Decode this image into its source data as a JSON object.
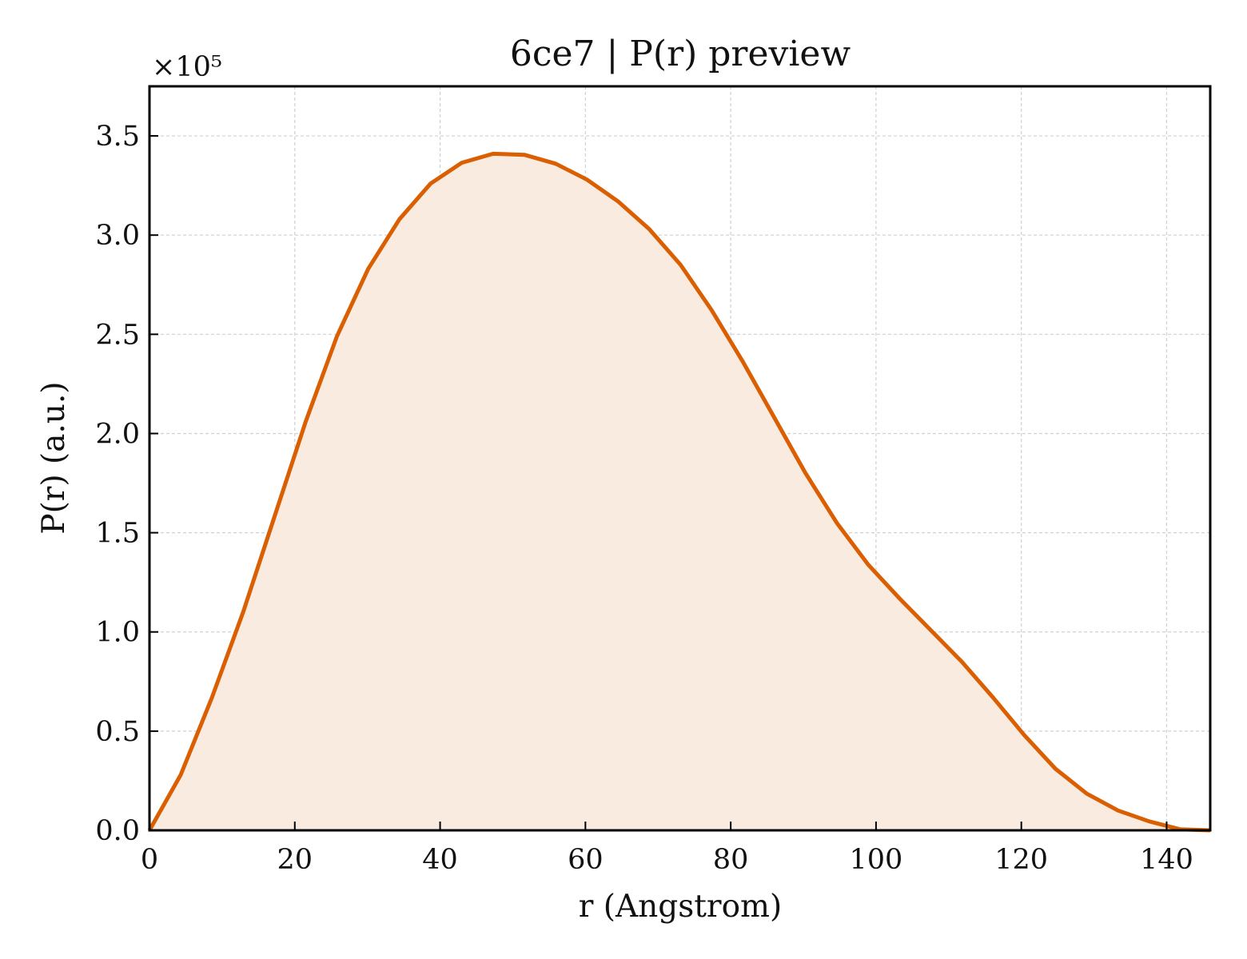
{
  "chart_data": {
    "type": "area",
    "title": "6ce7 | P(r) preview",
    "xlabel": "r (Angstrom)",
    "ylabel": "P(r) (a.u.)",
    "y_scale_label": "×10⁵",
    "xlim": [
      0,
      146
    ],
    "ylim": [
      0,
      3.75
    ],
    "x_ticks": [
      0,
      20,
      40,
      60,
      80,
      100,
      120,
      140
    ],
    "x_tick_labels": [
      "0",
      "20",
      "40",
      "60",
      "80",
      "100",
      "120",
      "140"
    ],
    "y_ticks": [
      0,
      0.5,
      1.0,
      1.5,
      2.0,
      2.5,
      3.0,
      3.5
    ],
    "y_tick_labels": [
      "0.0",
      "0.5",
      "1.0",
      "1.5",
      "2.0",
      "2.5",
      "3.0",
      "3.5"
    ],
    "grid": true,
    "legend": "none",
    "line_color": "#d95f02",
    "fill_color": "#f9ebe0",
    "series": [
      {
        "x": [
          0,
          4.3,
          8.6,
          12.9,
          17.2,
          21.5,
          25.8,
          30.1,
          34.4,
          38.7,
          43.0,
          47.3,
          51.6,
          55.9,
          60.2,
          64.5,
          68.8,
          73.1,
          77.4,
          81.7,
          86.0,
          90.3,
          94.6,
          98.9,
          103.2,
          107.5,
          111.8,
          116.1,
          120.4,
          124.7,
          129.0,
          133.3,
          137.6,
          141.9,
          146.0
        ],
        "y": [
          0.0,
          0.28,
          0.67,
          1.1,
          1.58,
          2.06,
          2.49,
          2.83,
          3.08,
          3.26,
          3.365,
          3.41,
          3.405,
          3.36,
          3.28,
          3.17,
          3.03,
          2.85,
          2.62,
          2.36,
          2.08,
          1.8,
          1.55,
          1.34,
          1.17,
          1.01,
          0.85,
          0.67,
          0.48,
          0.31,
          0.185,
          0.1,
          0.045,
          0.005,
          0.0
        ]
      }
    ]
  }
}
